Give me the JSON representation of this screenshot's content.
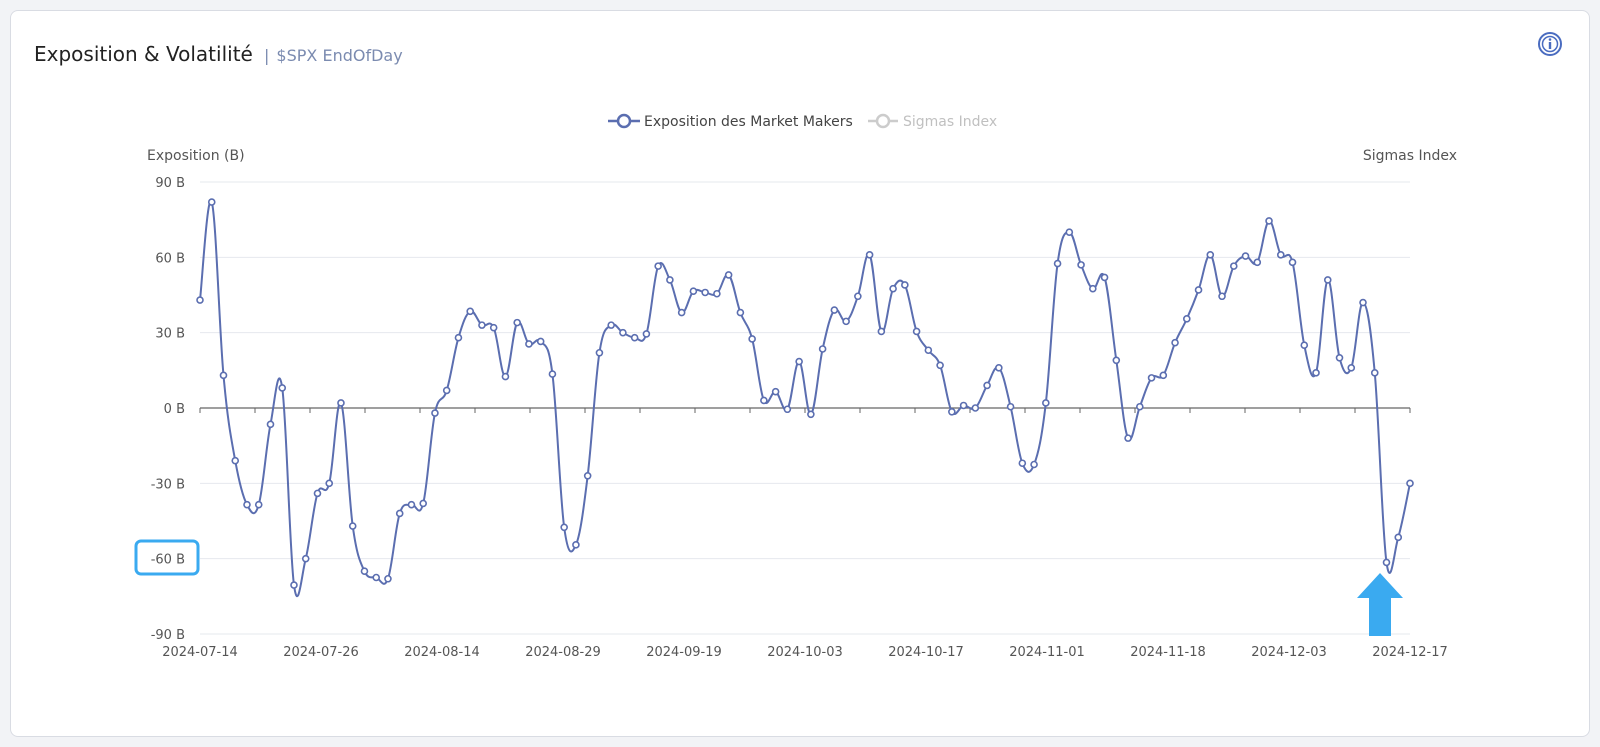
{
  "header": {
    "title": "Exposition & Volatilité",
    "separator": "|",
    "subtitle": "$SPX EndOfDay",
    "info_icon": "info-circle-icon"
  },
  "annotations": {
    "highlight_color": "#3aaaf0",
    "arrow_color": "#3aaaf0",
    "highlighted_tick": "-60 B",
    "arrow_icon": "arrow-up-icon"
  },
  "chart_data": {
    "type": "line",
    "legend": {
      "placement": "top-center",
      "entries": [
        {
          "name": "Exposition des Market Makers",
          "active": true,
          "color": "#5b6eb0"
        },
        {
          "name": "Sigmas Index",
          "active": false,
          "color": "#cccccc"
        }
      ]
    },
    "ylabel_left": "Exposition (B)",
    "ylabel_right": "Sigmas Index",
    "ylim": [
      -90,
      90
    ],
    "yticks": [
      90,
      60,
      30,
      0,
      -30,
      -60,
      -90
    ],
    "ytick_labels": [
      "90 B",
      "60 B",
      "30 B",
      "0 B",
      "-30 B",
      "-60 B",
      "-90 B"
    ],
    "grid": true,
    "xtick_labels": [
      "2024-07-14",
      "2024-07-26",
      "2024-08-14",
      "2024-08-29",
      "2024-09-19",
      "2024-10-03",
      "2024-10-17",
      "2024-11-01",
      "2024-11-18",
      "2024-12-03",
      "2024-12-17"
    ],
    "series": [
      {
        "name": "Exposition des Market Makers",
        "color": "#5b6eb0",
        "values": [
          43,
          82,
          13,
          -21,
          -38.5,
          -38.5,
          -6.5,
          8,
          -70.5,
          -60,
          -34,
          -30,
          2,
          -47,
          -65,
          -67.5,
          -68,
          -42,
          -38.5,
          -38,
          -2,
          7,
          28,
          38.5,
          33,
          32,
          12.5,
          34,
          25.5,
          26.5,
          13.5,
          -47.5,
          -54.5,
          -27,
          22,
          33,
          30,
          28,
          29.5,
          56.5,
          51,
          38,
          46.5,
          46,
          45.5,
          53,
          38,
          27.5,
          3,
          6.5,
          -0.5,
          18.5,
          -2.5,
          23.5,
          39,
          34.5,
          44.5,
          61,
          30.5,
          47.5,
          49,
          30.5,
          23,
          17,
          -1.5,
          1,
          0,
          9,
          16,
          0.5,
          -22,
          -22.5,
          2,
          57.5,
          70,
          57,
          47.5,
          52,
          19,
          -12,
          0.5,
          12,
          13,
          26,
          35.5,
          47,
          61,
          44.5,
          56.5,
          60.5,
          58,
          74.5,
          61,
          58,
          25,
          14,
          51,
          20,
          16,
          42,
          14,
          -61.5,
          -51.5,
          -30
        ]
      }
    ]
  }
}
